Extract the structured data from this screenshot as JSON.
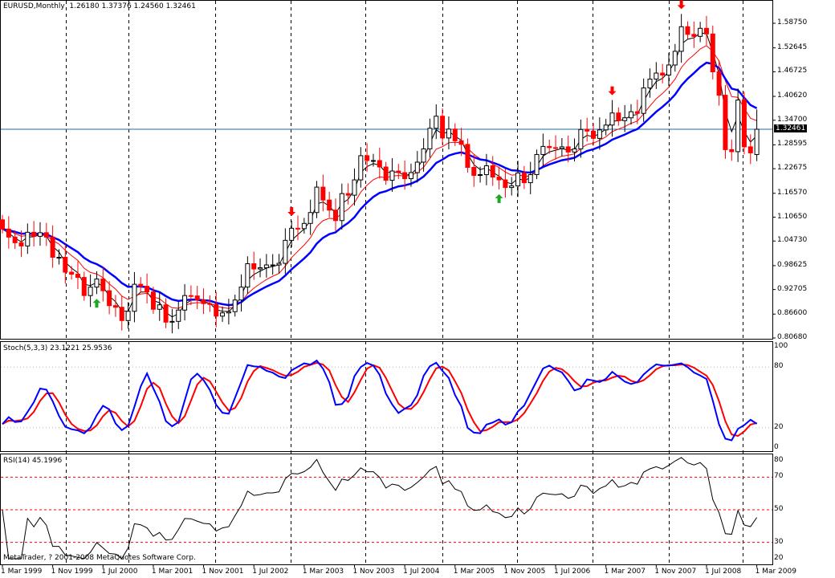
{
  "header": {
    "symbol_timeframe": "EURUSD,Monthly",
    "ohlc": "1.26180 1.37376 1.24560 1.32461"
  },
  "price_axis": [
    "1.58750",
    "1.52645",
    "1.46725",
    "1.40620",
    "1.34700",
    "1.28595",
    "1.22675",
    "1.16570",
    "1.10650",
    "1.04730",
    "0.98625",
    "0.92705",
    "0.86600",
    "0.80680"
  ],
  "current_price": "1.32461",
  "stoch": {
    "label": "Stoch(5,3,3) 23.1221 25.9536",
    "levels": [
      "100",
      "80",
      "20",
      "0"
    ]
  },
  "rsi": {
    "label": "RSI(14) 45.1996",
    "levels": [
      "80",
      "70",
      "50",
      "30",
      "20"
    ]
  },
  "copyright": "MetaTrader, ? 2001-2008 MetaQuotes Software Corp.",
  "time_axis": [
    "1 Mar 1999",
    "1 Nov 1999",
    "1 Jul 2000",
    "1 Mar 2001",
    "1 Nov 2001",
    "1 Jul 2002",
    "1 Mar 2003",
    "1 Nov 2003",
    "1 Jul 2004",
    "1 Mar 2005",
    "1 Nov 2005",
    "1 Jul 2006",
    "1 Mar 2007",
    "1 Nov 2007",
    "1 Jul 2008",
    "1 Mar 2009"
  ],
  "colors": {
    "bull": "#ffffff",
    "bear": "#ff0000",
    "ma_fast": "#000000",
    "ma_mid": "#ff0000",
    "ma_slow": "#0000ff",
    "stoch_main": "#0000ff",
    "stoch_signal": "#ff0000",
    "price_line": "#1e6ea8"
  },
  "chart_data": {
    "type": "candlestick",
    "title": "EURUSD,Monthly",
    "start": "1 Mar 1999",
    "ylim": [
      0.8068,
      1.5875
    ],
    "closes": [
      1.077,
      1.057,
      1.043,
      1.035,
      1.069,
      1.059,
      1.068,
      1.057,
      1.007,
      1.007,
      0.97,
      0.965,
      0.957,
      0.912,
      0.933,
      0.953,
      0.924,
      0.887,
      0.883,
      0.85,
      0.873,
      0.94,
      0.935,
      0.921,
      0.878,
      0.889,
      0.846,
      0.848,
      0.876,
      0.912,
      0.911,
      0.901,
      0.892,
      0.89,
      0.861,
      0.869,
      0.872,
      0.901,
      0.933,
      0.991,
      0.978,
      0.981,
      0.988,
      0.988,
      0.992,
      1.049,
      1.079,
      1.078,
      1.091,
      1.118,
      1.181,
      1.149,
      1.124,
      1.098,
      1.165,
      1.161,
      1.199,
      1.259,
      1.247,
      1.247,
      1.231,
      1.198,
      1.221,
      1.217,
      1.202,
      1.217,
      1.243,
      1.276,
      1.327,
      1.357,
      1.303,
      1.325,
      1.296,
      1.287,
      1.23,
      1.21,
      1.212,
      1.234,
      1.206,
      1.199,
      1.18,
      1.184,
      1.216,
      1.192,
      1.212,
      1.262,
      1.282,
      1.279,
      1.277,
      1.281,
      1.268,
      1.276,
      1.324,
      1.32,
      1.302,
      1.323,
      1.335,
      1.365,
      1.346,
      1.353,
      1.368,
      1.364,
      1.427,
      1.449,
      1.464,
      1.459,
      1.484,
      1.518,
      1.579,
      1.56,
      1.555,
      1.575,
      1.561,
      1.467,
      1.409,
      1.274,
      1.269,
      1.397,
      1.281,
      1.266,
      1.3246
    ],
    "last_bar": {
      "open": 1.2618,
      "high": 1.37376,
      "low": 1.2456,
      "close": 1.32461
    },
    "indicators": [
      "moving averages",
      "Stoch(5,3,3)",
      "RSI(14)"
    ],
    "signals": [
      {
        "type": "buy",
        "month_index": 15
      },
      {
        "type": "sell",
        "month_index": 46
      },
      {
        "type": "buy",
        "month_index": 79
      },
      {
        "type": "sell",
        "month_index": 97
      },
      {
        "type": "sell",
        "month_index": 108
      }
    ]
  }
}
